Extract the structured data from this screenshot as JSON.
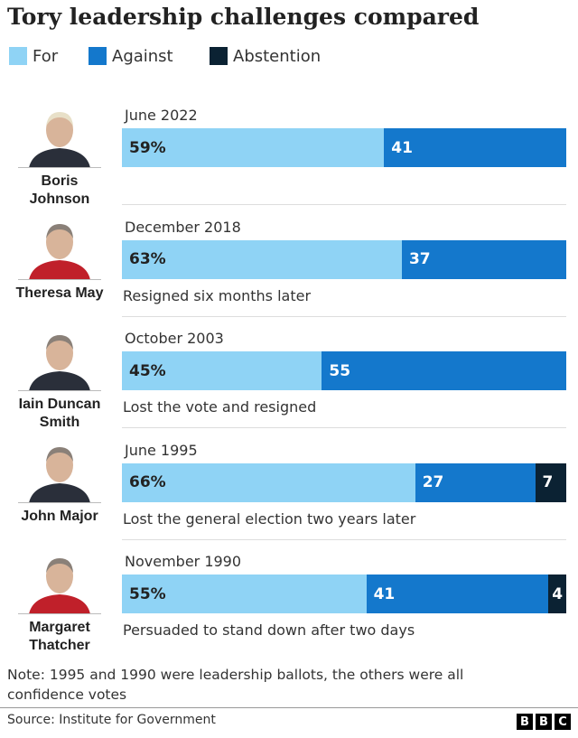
{
  "chart_data": {
    "type": "bar",
    "orientation": "horizontal",
    "stacked": true,
    "title": "Tory leadership challenges compared",
    "categories": [
      "Boris Johnson",
      "Theresa May",
      "Iain Duncan Smith",
      "John Major",
      "Margaret Thatcher"
    ],
    "dates": [
      "June 2022",
      "December 2018",
      "October 2003",
      "June 1995",
      "November 1990"
    ],
    "notes": [
      null,
      "Resigned six months later",
      "Lost the vote and resigned",
      "Lost the general election two years later",
      "Persuaded to stand down after two days"
    ],
    "series": [
      {
        "name": "For",
        "color": "#8fd3f5",
        "values": [
          59,
          63,
          45,
          66,
          55
        ],
        "value_labels": [
          "59%",
          "63%",
          "45%",
          "66%",
          "55%"
        ]
      },
      {
        "name": "Against",
        "color": "#1478cc",
        "values": [
          41,
          37,
          55,
          27,
          41
        ]
      },
      {
        "name": "Abstention",
        "color": "#0b2233",
        "values": [
          null,
          null,
          null,
          7,
          4
        ]
      }
    ],
    "note": "Note: 1995 and 1990 were leadership ballots, the others were all confidence votes",
    "source": "Source: Institute for Government",
    "logo": [
      "B",
      "B",
      "C"
    ]
  }
}
